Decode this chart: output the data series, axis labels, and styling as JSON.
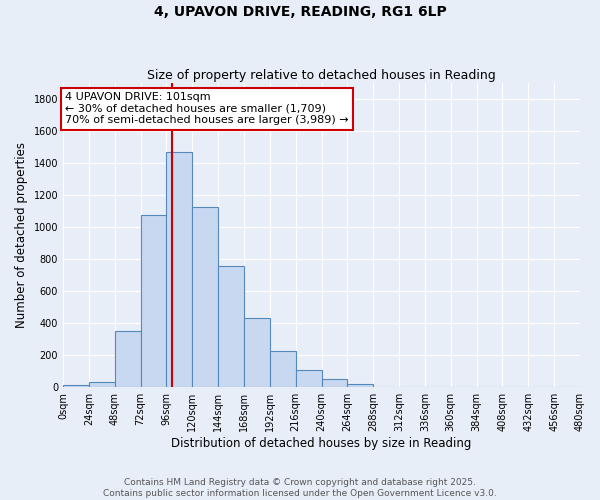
{
  "title": "4, UPAVON DRIVE, READING, RG1 6LP",
  "subtitle": "Size of property relative to detached houses in Reading",
  "xlabel": "Distribution of detached houses by size in Reading",
  "ylabel": "Number of detached properties",
  "bin_edges": [
    0,
    24,
    48,
    72,
    96,
    120,
    144,
    168,
    192,
    216,
    240,
    264,
    288,
    312,
    336,
    360,
    384,
    408,
    432,
    456,
    480
  ],
  "bar_heights": [
    15,
    35,
    355,
    1075,
    1470,
    1125,
    755,
    435,
    225,
    110,
    55,
    20,
    0,
    0,
    0,
    0,
    0,
    0,
    0,
    0
  ],
  "bar_color": "#c8d8f0",
  "bar_edgecolor": "#5588bb",
  "vline_x": 101,
  "vline_color": "#cc0000",
  "annotation_text": "4 UPAVON DRIVE: 101sqm\n← 30% of detached houses are smaller (1,709)\n70% of semi-detached houses are larger (3,989) →",
  "annotation_box_edgecolor": "#cc0000",
  "annotation_box_facecolor": "#ffffff",
  "ylim": [
    0,
    1900
  ],
  "xlim": [
    0,
    480
  ],
  "yticks": [
    0,
    200,
    400,
    600,
    800,
    1000,
    1200,
    1400,
    1600,
    1800
  ],
  "xtick_labels": [
    "0sqm",
    "24sqm",
    "48sqm",
    "72sqm",
    "96sqm",
    "120sqm",
    "144sqm",
    "168sqm",
    "192sqm",
    "216sqm",
    "240sqm",
    "264sqm",
    "288sqm",
    "312sqm",
    "336sqm",
    "360sqm",
    "384sqm",
    "408sqm",
    "432sqm",
    "456sqm",
    "480sqm"
  ],
  "bg_color": "#e8eef8",
  "plot_bg_color": "#e8eef8",
  "footer_line1": "Contains HM Land Registry data © Crown copyright and database right 2025.",
  "footer_line2": "Contains public sector information licensed under the Open Government Licence v3.0.",
  "title_fontsize": 10,
  "subtitle_fontsize": 9,
  "axis_label_fontsize": 8.5,
  "tick_fontsize": 7,
  "annotation_fontsize": 8,
  "footer_fontsize": 6.5
}
